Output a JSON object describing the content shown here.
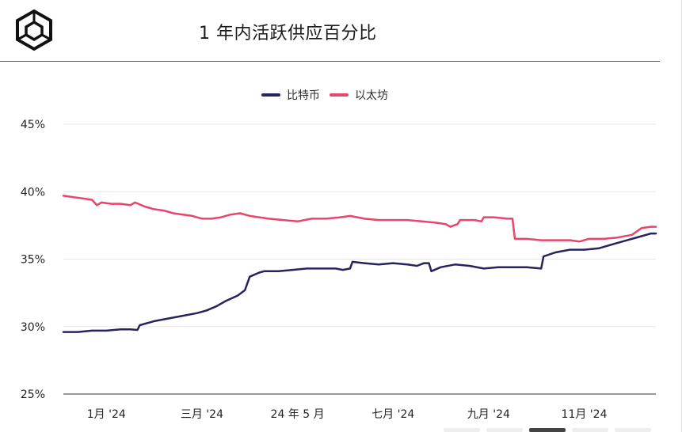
{
  "header": {
    "title": "1 年内活跃供应百分比"
  },
  "colors": {
    "btc": "#27235c",
    "eth": "#e8456b",
    "divider": "#8a34d6",
    "grid": "#e5e5e5"
  },
  "icons": {
    "logo": "cube-logo-icon"
  },
  "chart_data": {
    "type": "line",
    "title": "1 年内活跃供应百分比",
    "xlabel": "",
    "ylabel": "",
    "legend_position": "top-center",
    "grid": true,
    "xlim": [
      0,
      12.4
    ],
    "ylim": [
      25,
      45
    ],
    "y_ticks": [
      "25%",
      "30%",
      "35%",
      "40%",
      "45%"
    ],
    "y_tick_values": [
      25,
      30,
      35,
      40,
      45
    ],
    "x_ticks": [
      "1月 '24",
      "三月 '24",
      "24 年 5 月",
      "七月 '24",
      "九月 '24",
      "11月 '24"
    ],
    "x_tick_values": [
      0.9,
      2.9,
      4.9,
      6.9,
      8.9,
      10.9
    ],
    "series": [
      {
        "name": "比特币",
        "color": "#27235c",
        "points": [
          [
            0.0,
            29.6
          ],
          [
            0.3,
            29.6
          ],
          [
            0.6,
            29.7
          ],
          [
            0.9,
            29.7
          ],
          [
            1.2,
            29.8
          ],
          [
            1.4,
            29.8
          ],
          [
            1.55,
            29.75
          ],
          [
            1.6,
            30.1
          ],
          [
            1.9,
            30.4
          ],
          [
            2.2,
            30.6
          ],
          [
            2.5,
            30.8
          ],
          [
            2.8,
            31.0
          ],
          [
            3.0,
            31.2
          ],
          [
            3.2,
            31.5
          ],
          [
            3.4,
            31.9
          ],
          [
            3.65,
            32.3
          ],
          [
            3.8,
            32.7
          ],
          [
            3.9,
            33.7
          ],
          [
            4.1,
            34.0
          ],
          [
            4.2,
            34.1
          ],
          [
            4.5,
            34.1
          ],
          [
            4.8,
            34.2
          ],
          [
            5.1,
            34.3
          ],
          [
            5.4,
            34.3
          ],
          [
            5.7,
            34.3
          ],
          [
            5.85,
            34.2
          ],
          [
            6.0,
            34.3
          ],
          [
            6.05,
            34.8
          ],
          [
            6.3,
            34.7
          ],
          [
            6.6,
            34.6
          ],
          [
            6.9,
            34.7
          ],
          [
            7.2,
            34.6
          ],
          [
            7.4,
            34.5
          ],
          [
            7.55,
            34.7
          ],
          [
            7.65,
            34.7
          ],
          [
            7.7,
            34.1
          ],
          [
            7.9,
            34.4
          ],
          [
            8.2,
            34.6
          ],
          [
            8.5,
            34.5
          ],
          [
            8.8,
            34.3
          ],
          [
            9.1,
            34.4
          ],
          [
            9.4,
            34.4
          ],
          [
            9.7,
            34.4
          ],
          [
            10.0,
            34.3
          ],
          [
            10.05,
            35.2
          ],
          [
            10.3,
            35.5
          ],
          [
            10.6,
            35.7
          ],
          [
            10.9,
            35.7
          ],
          [
            11.2,
            35.8
          ],
          [
            11.5,
            36.1
          ],
          [
            11.8,
            36.4
          ],
          [
            12.1,
            36.7
          ],
          [
            12.3,
            36.9
          ],
          [
            12.4,
            36.9
          ]
        ]
      },
      {
        "name": "以太坊",
        "color": "#e8456b",
        "points": [
          [
            0.0,
            39.7
          ],
          [
            0.2,
            39.6
          ],
          [
            0.4,
            39.5
          ],
          [
            0.6,
            39.4
          ],
          [
            0.7,
            39.0
          ],
          [
            0.8,
            39.2
          ],
          [
            1.0,
            39.1
          ],
          [
            1.2,
            39.1
          ],
          [
            1.4,
            39.0
          ],
          [
            1.5,
            39.2
          ],
          [
            1.7,
            38.9
          ],
          [
            1.9,
            38.7
          ],
          [
            2.1,
            38.6
          ],
          [
            2.3,
            38.4
          ],
          [
            2.5,
            38.3
          ],
          [
            2.7,
            38.2
          ],
          [
            2.9,
            38.0
          ],
          [
            3.1,
            38.0
          ],
          [
            3.3,
            38.1
          ],
          [
            3.5,
            38.3
          ],
          [
            3.7,
            38.4
          ],
          [
            3.9,
            38.2
          ],
          [
            4.1,
            38.1
          ],
          [
            4.3,
            38.0
          ],
          [
            4.6,
            37.9
          ],
          [
            4.9,
            37.8
          ],
          [
            5.2,
            38.0
          ],
          [
            5.5,
            38.0
          ],
          [
            5.8,
            38.1
          ],
          [
            6.0,
            38.2
          ],
          [
            6.3,
            38.0
          ],
          [
            6.6,
            37.9
          ],
          [
            6.9,
            37.9
          ],
          [
            7.2,
            37.9
          ],
          [
            7.5,
            37.8
          ],
          [
            7.8,
            37.7
          ],
          [
            8.0,
            37.6
          ],
          [
            8.1,
            37.4
          ],
          [
            8.25,
            37.6
          ],
          [
            8.3,
            37.9
          ],
          [
            8.6,
            37.9
          ],
          [
            8.75,
            37.8
          ],
          [
            8.8,
            38.1
          ],
          [
            9.0,
            38.1
          ],
          [
            9.3,
            38.0
          ],
          [
            9.4,
            38.0
          ],
          [
            9.45,
            36.5
          ],
          [
            9.7,
            36.5
          ],
          [
            10.0,
            36.4
          ],
          [
            10.3,
            36.4
          ],
          [
            10.6,
            36.4
          ],
          [
            10.8,
            36.3
          ],
          [
            11.0,
            36.5
          ],
          [
            11.3,
            36.5
          ],
          [
            11.6,
            36.6
          ],
          [
            11.9,
            36.8
          ],
          [
            12.1,
            37.3
          ],
          [
            12.3,
            37.4
          ],
          [
            12.4,
            37.4
          ]
        ]
      }
    ]
  }
}
